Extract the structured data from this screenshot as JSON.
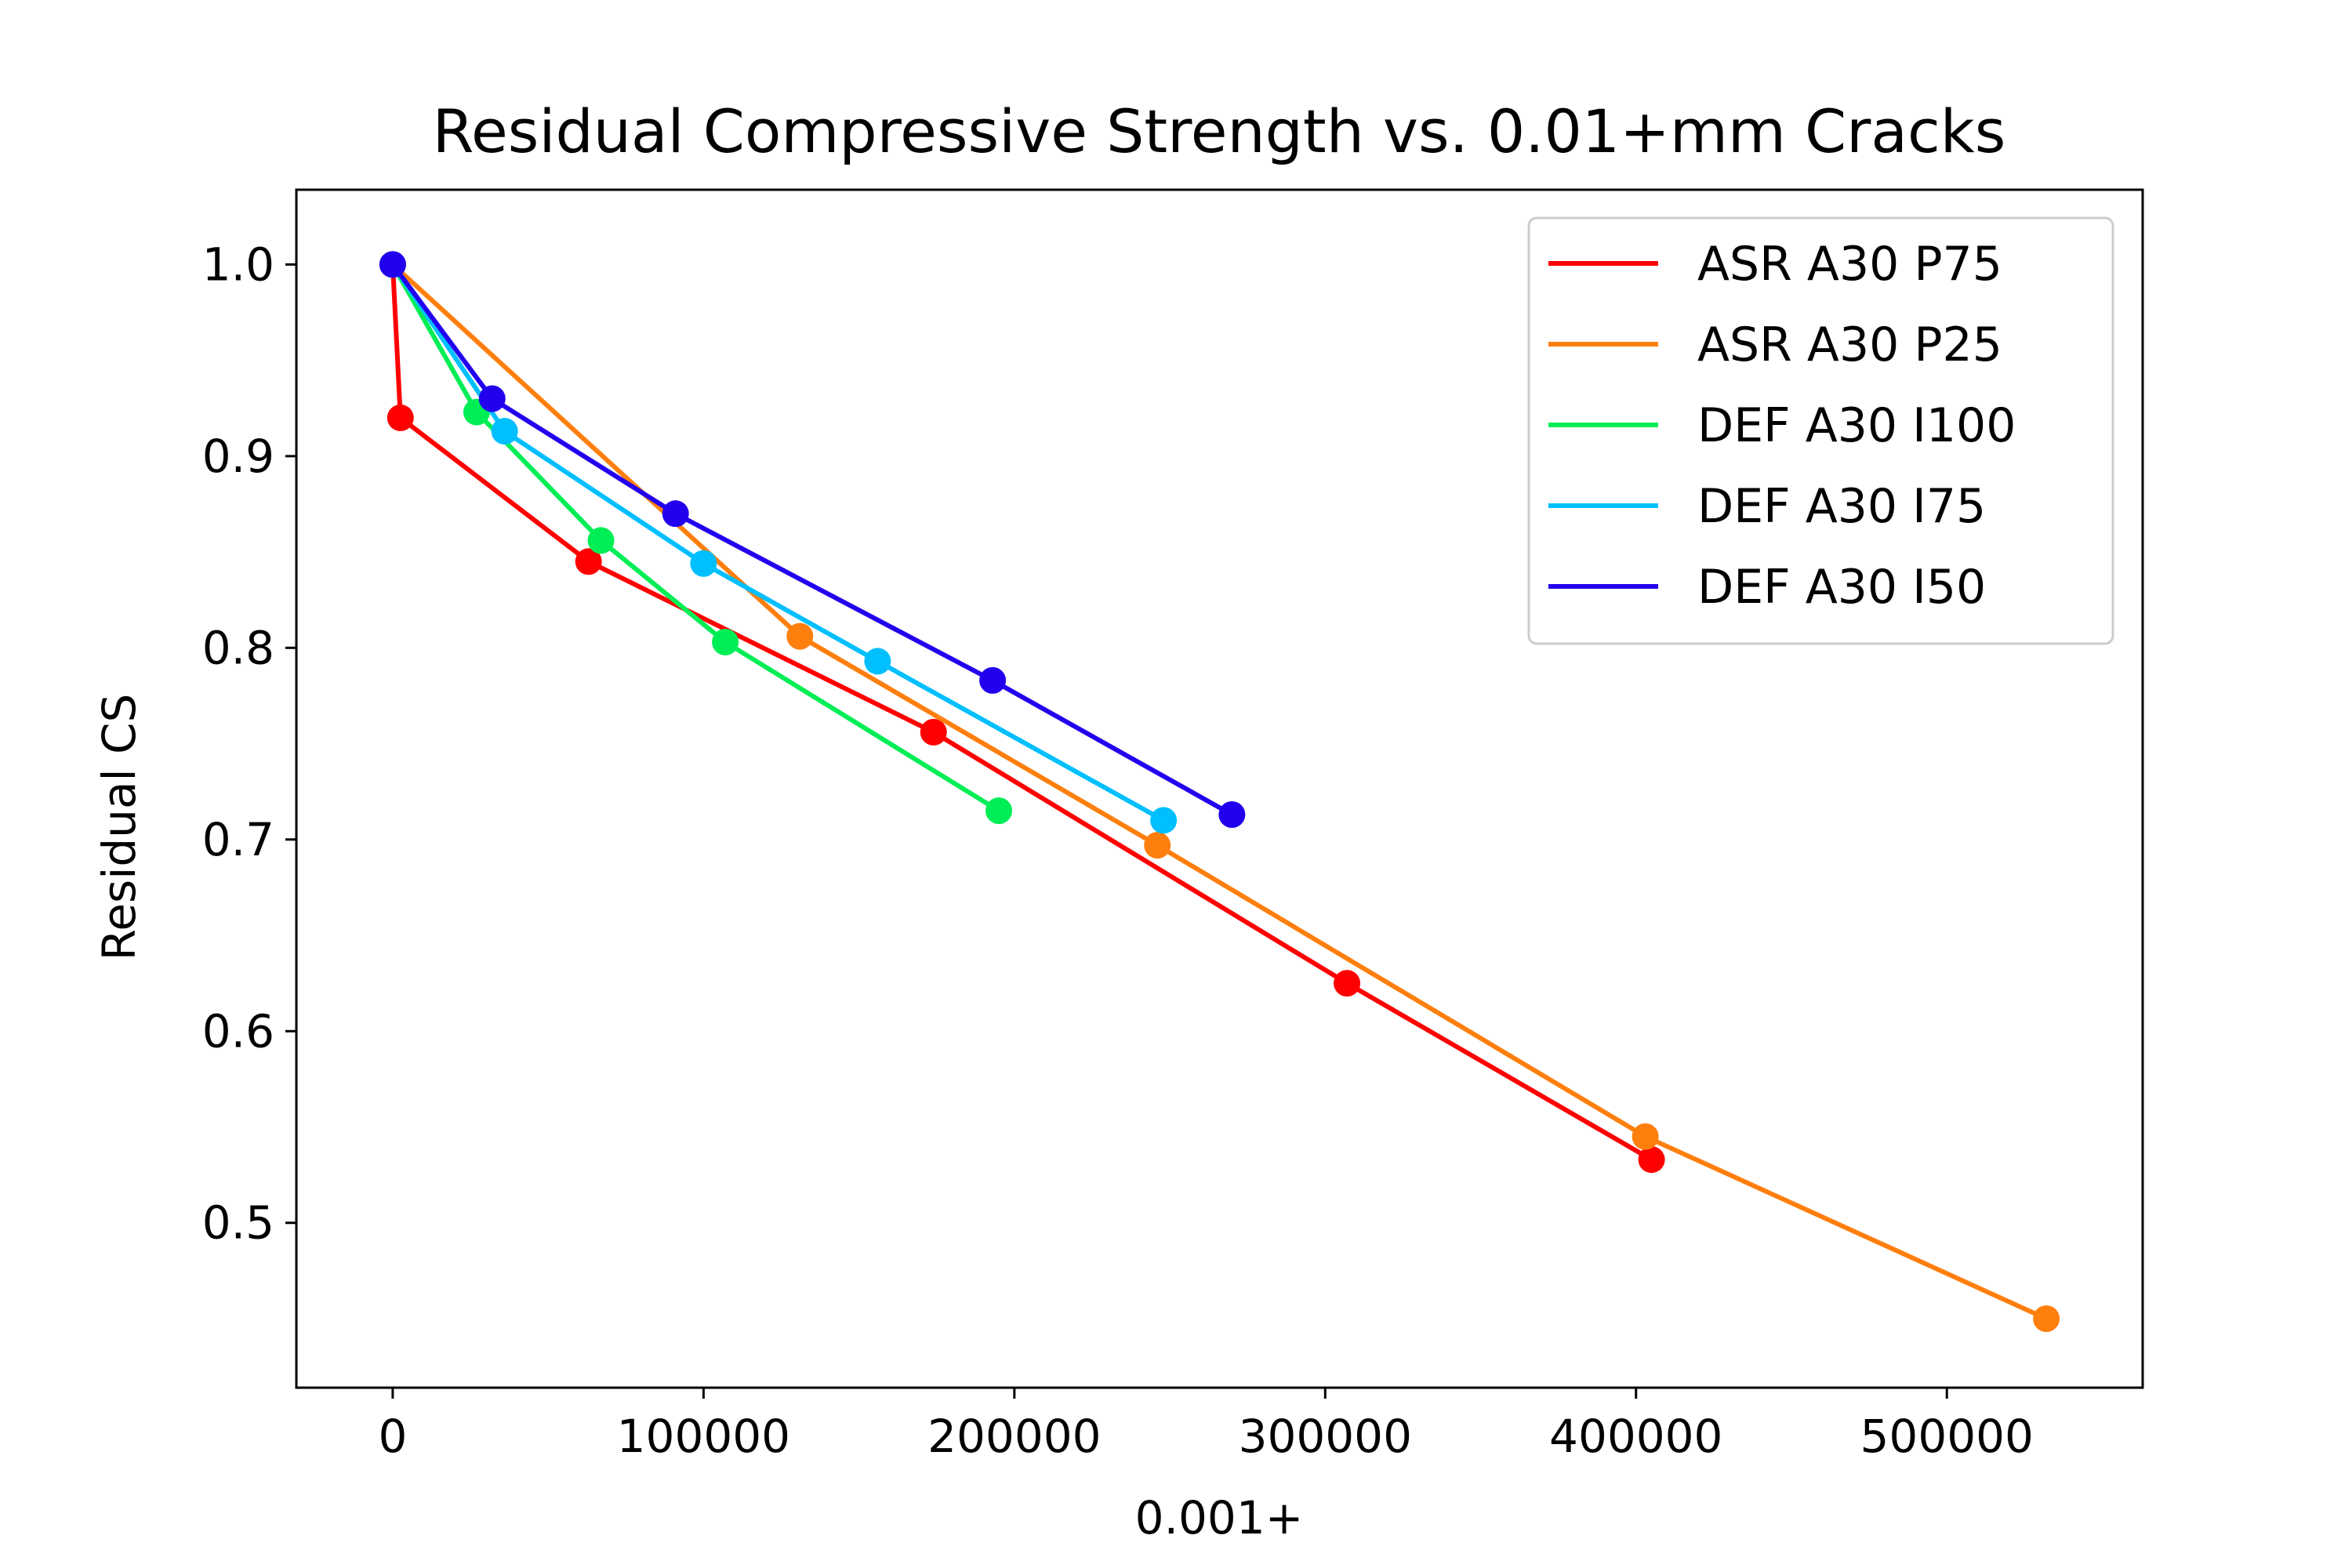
{
  "chart_data": {
    "type": "line",
    "title": "Residual Compressive Strength vs. 0.01+mm Cracks",
    "xlabel": "0.001+",
    "ylabel": "Residual CS",
    "xlim": [
      -31000,
      563000
    ],
    "ylim": [
      0.414,
      1.039
    ],
    "xticks": [
      0,
      100000,
      200000,
      300000,
      400000,
      500000
    ],
    "xtick_labels": [
      "0",
      "100000",
      "200000",
      "300000",
      "400000",
      "500000"
    ],
    "yticks": [
      0.5,
      0.6,
      0.7,
      0.8,
      0.9,
      1.0
    ],
    "ytick_labels": [
      "0.5",
      "0.6",
      "0.7",
      "0.8",
      "0.9",
      "1.0"
    ],
    "grid": false,
    "legend_position": "top-right",
    "markers": true,
    "series": [
      {
        "name": "ASR A30 P75",
        "color": "#ff0000",
        "points": [
          [
            0,
            1.0
          ],
          [
            2500,
            0.92
          ],
          [
            63000,
            0.845
          ],
          [
            174000,
            0.756
          ],
          [
            307000,
            0.625
          ],
          [
            405000,
            0.533
          ]
        ]
      },
      {
        "name": "ASR A30 P25",
        "color": "#ff7f0e",
        "points": [
          [
            0,
            1.0
          ],
          [
            131000,
            0.806
          ],
          [
            246000,
            0.697
          ],
          [
            403000,
            0.545
          ],
          [
            532000,
            0.45
          ]
        ]
      },
      {
        "name": "DEF A30 I100",
        "color": "#00ee55",
        "points": [
          [
            0,
            1.0
          ],
          [
            27000,
            0.923
          ],
          [
            67000,
            0.856
          ],
          [
            107000,
            0.803
          ],
          [
            195000,
            0.715
          ]
        ]
      },
      {
        "name": "DEF A30 I75",
        "color": "#00bfff",
        "points": [
          [
            0,
            1.0
          ],
          [
            36000,
            0.913
          ],
          [
            100000,
            0.844
          ],
          [
            156000,
            0.793
          ],
          [
            248000,
            0.71
          ]
        ]
      },
      {
        "name": "DEF A30 I50",
        "color": "#2200ee",
        "points": [
          [
            0,
            1.0
          ],
          [
            32000,
            0.93
          ],
          [
            91000,
            0.87
          ],
          [
            193000,
            0.783
          ],
          [
            270000,
            0.713
          ]
        ]
      }
    ]
  }
}
